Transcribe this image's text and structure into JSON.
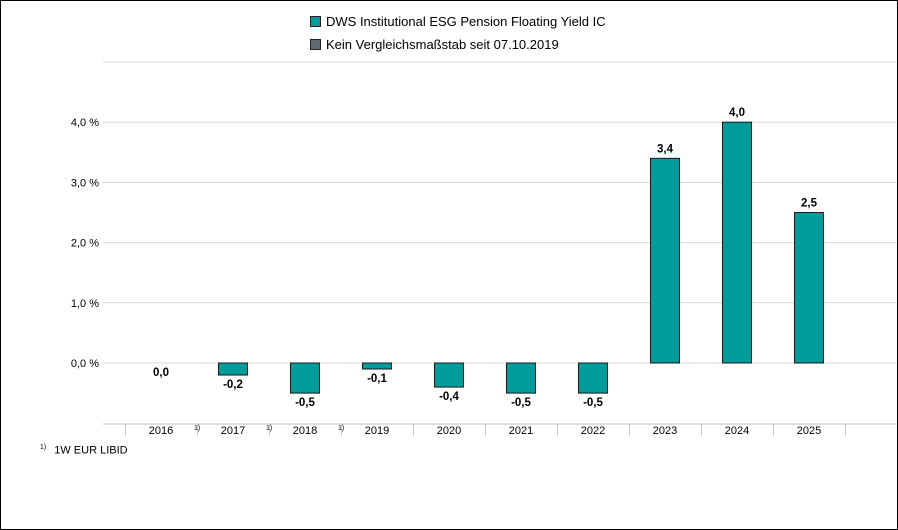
{
  "legend": [
    {
      "label": "DWS Institutional ESG Pension Floating Yield IC",
      "color": "#009B9B"
    },
    {
      "label": "Kein Vergleichsmaßstab seit 07.10.2019",
      "color": "#5f6b72"
    }
  ],
  "footnote": {
    "marker": "1)",
    "text": "1W EUR LIBID"
  },
  "chart_data": {
    "type": "bar",
    "categories": [
      "2016",
      "2017",
      "2018",
      "2019",
      "2020",
      "2021",
      "2022",
      "2023",
      "2024",
      "2025"
    ],
    "category_footnotes": [
      "1)",
      "1)",
      "1)",
      "",
      "",
      "",
      "",
      "",
      "",
      ""
    ],
    "series": [
      {
        "name": "DWS Institutional ESG Pension Floating Yield IC",
        "values": [
          0.0,
          -0.2,
          -0.5,
          -0.1,
          -0.4,
          -0.5,
          -0.5,
          3.4,
          4.0,
          2.5
        ],
        "color": "#009B9B"
      }
    ],
    "value_labels": [
      "0,0",
      "-0,2",
      "-0,5",
      "-0,1",
      "-0,4",
      "-0,5",
      "-0,5",
      "3,4",
      "4,0",
      "2,5"
    ],
    "yticks": [
      0,
      1,
      2,
      3,
      4
    ],
    "ytick_labels": [
      "0,0 %",
      "1,0 %",
      "2,0 %",
      "3,0 %",
      "4,0 %"
    ],
    "ylim": [
      -1,
      5
    ],
    "grid": true,
    "legend_position": "top"
  }
}
